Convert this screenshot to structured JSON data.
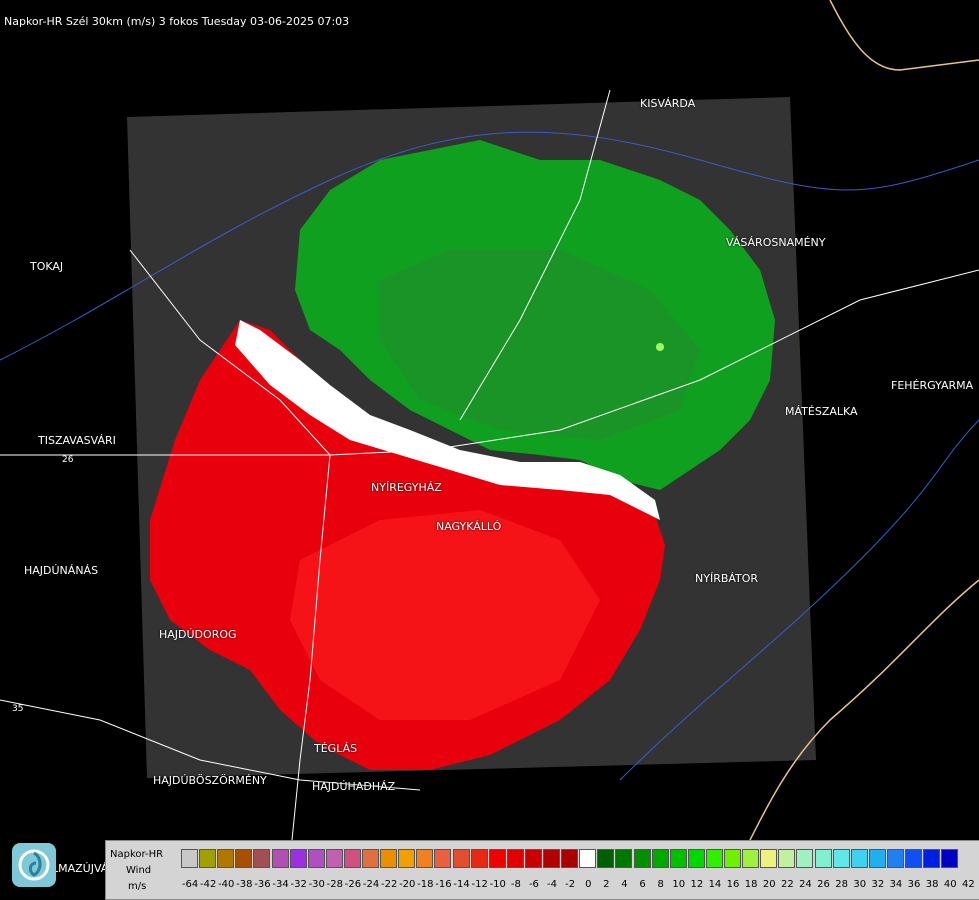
{
  "header": {
    "title": "Napkor-HR Szél 30km (m/s) 3 fokos Tuesday 03-06-2025 07:03"
  },
  "cities": [
    {
      "id": "kisvarda",
      "name": "KISVÁRDA"
    },
    {
      "id": "tokaj",
      "name": "TOKAJ"
    },
    {
      "id": "vasarosnameny",
      "name": "VÁSÁROSNAMÉNY"
    },
    {
      "id": "fehergyarmat",
      "name": "FEHÉRGYARMA"
    },
    {
      "id": "mateszalka",
      "name": "MÁTÉSZALKA"
    },
    {
      "id": "tiszavasvari",
      "name": "TISZAVASVÁRI"
    },
    {
      "id": "nyiregyhaza",
      "name": "NYÍREGYHÁZ"
    },
    {
      "id": "nagykallo",
      "name": "NAGYKÁLLÓ"
    },
    {
      "id": "hajdunanas",
      "name": "HAJDÚNÁNÁS"
    },
    {
      "id": "nyirbator",
      "name": "NYÍRBÁTOR"
    },
    {
      "id": "hajdudorog",
      "name": "HAJDÚDOROG"
    },
    {
      "id": "teglas",
      "name": "TÉGLÁS"
    },
    {
      "id": "hajduboszormeny",
      "name": "HAJDÚBÖSZÖRMÉNY"
    },
    {
      "id": "hajduhadhaz",
      "name": "HAJDÚHADHÁZ"
    },
    {
      "id": "mazujvar",
      "name": "LMAZÚJVÁR"
    }
  ],
  "road_labels": [
    "26",
    "35"
  ],
  "legend": {
    "product": "Napkor-HR",
    "quantity": "Wind",
    "unit": "m/s",
    "ticks": [
      "-64",
      "-42",
      "-40",
      "-38",
      "-36",
      "-34",
      "-32",
      "-30",
      "-28",
      "-26",
      "-24",
      "-22",
      "-20",
      "-18",
      "-16",
      "-14",
      "-12",
      "-10",
      "-8",
      "-6",
      "-4",
      "-2",
      "0",
      "2",
      "4",
      "6",
      "8",
      "10",
      "12",
      "14",
      "16",
      "18",
      "20",
      "22",
      "24",
      "26",
      "28",
      "30",
      "32",
      "34",
      "36",
      "38",
      "40",
      "42"
    ],
    "colors": [
      "#c8c8c8",
      "#a0a000",
      "#b07800",
      "#a85000",
      "#a05050",
      "#b050b0",
      "#9b30e0",
      "#b050c0",
      "#c060b0",
      "#d05080",
      "#e07040",
      "#e89000",
      "#f0a000",
      "#f08020",
      "#e86040",
      "#e05030",
      "#e82810",
      "#f00000",
      "#e00000",
      "#c80000",
      "#b00000",
      "#a80000",
      "#ffffff",
      "#006000",
      "#007800",
      "#009000",
      "#00a800",
      "#00c000",
      "#00d800",
      "#30f000",
      "#70f000",
      "#a0f040",
      "#f0f080",
      "#c0f0a0",
      "#a0f0c0",
      "#80f0d0",
      "#60e8e8",
      "#40d0f0",
      "#20b0f0",
      "#2080f0",
      "#1050f0",
      "#0020e0",
      "#0000c0"
    ]
  },
  "logo": {
    "name": "logo-icon"
  }
}
